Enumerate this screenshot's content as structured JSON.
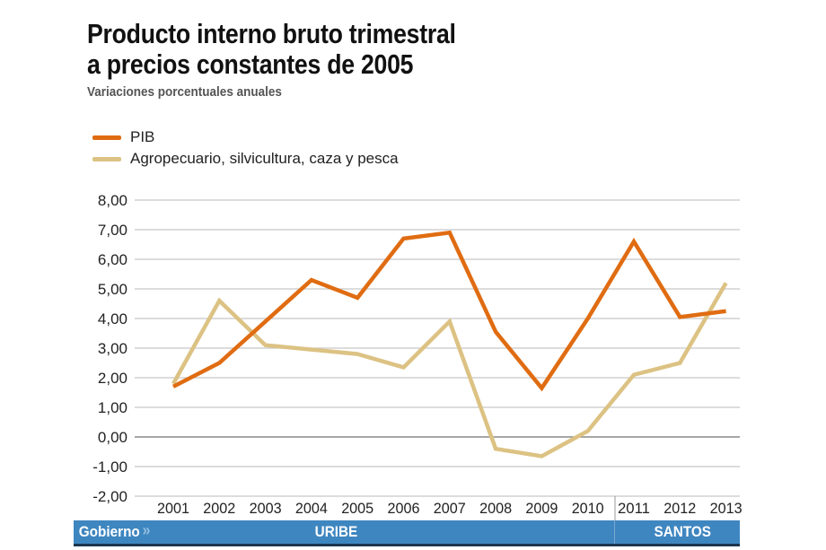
{
  "title_line1": "Producto interno bruto trimestral",
  "title_line2": "a precios constantes de 2005",
  "subtitle": "Variaciones porcentuales anuales",
  "footer": {
    "label": "Gobierno",
    "uribe": "URIBE",
    "santos": "SANTOS",
    "bar_color": "#3e86c0"
  },
  "chart_data": {
    "type": "line",
    "title": "Producto interno bruto trimestral a precios constantes de 2005",
    "subtitle": "Variaciones porcentuales anuales",
    "x": [
      "2001",
      "2002",
      "2003",
      "2004",
      "2005",
      "2006",
      "2007",
      "2008",
      "2009",
      "2010",
      "2011",
      "2012",
      "2013"
    ],
    "ylim": [
      -2,
      8
    ],
    "yticks": [
      "8,00",
      "7,00",
      "6,00",
      "5,00",
      "4,00",
      "3,00",
      "2,00",
      "1,00",
      "0,00",
      "-1,00",
      "-2,00"
    ],
    "ytick_values": [
      8,
      7,
      6,
      5,
      4,
      3,
      2,
      1,
      0,
      -1,
      -2
    ],
    "grid": true,
    "legend": "top-left",
    "series": [
      {
        "name": "PIB",
        "color": "#e06c12",
        "values": [
          1.7,
          2.5,
          3.9,
          5.3,
          4.7,
          6.7,
          6.9,
          3.55,
          1.65,
          4.0,
          6.6,
          4.05,
          4.25
        ]
      },
      {
        "name": "Agropecuario, silvicultura, caza y pesca",
        "color": "#dcc283",
        "values": [
          1.8,
          4.6,
          3.1,
          2.95,
          2.8,
          2.35,
          3.9,
          -0.4,
          -0.65,
          0.2,
          2.1,
          2.5,
          5.2
        ]
      }
    ]
  }
}
